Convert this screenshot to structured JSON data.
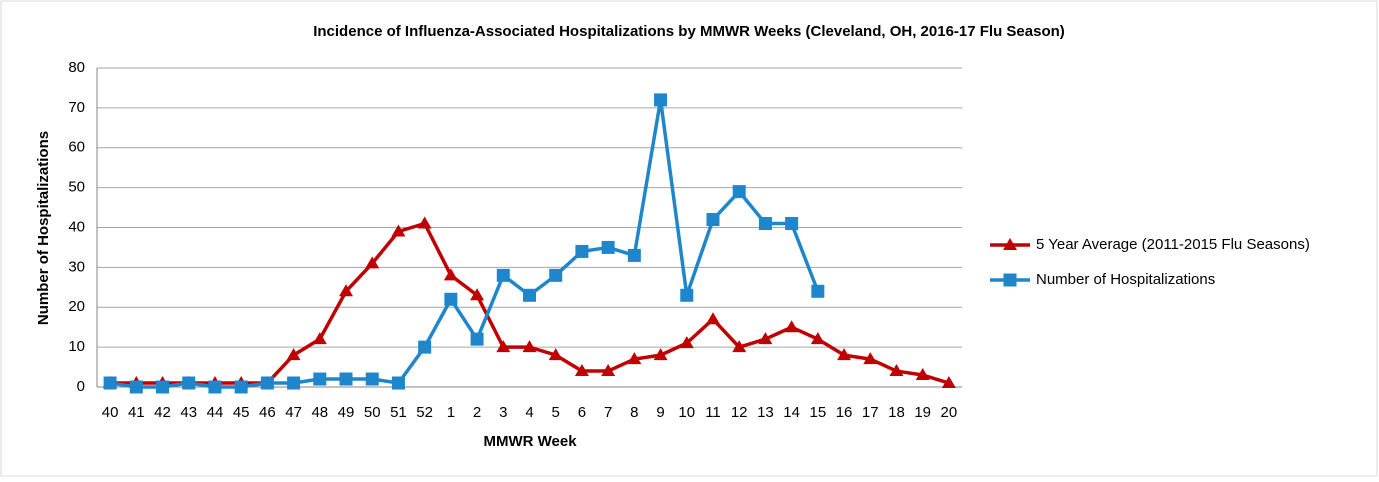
{
  "chart_data": {
    "type": "line",
    "title": "Incidence of Influenza-Associated Hospitalizations by MMWR Weeks (Cleveland, OH, 2016-17 Flu Season)",
    "x_label": "MMWR Week",
    "y_label": "Number of Hospitalizations",
    "categories": [
      "40",
      "41",
      "42",
      "43",
      "44",
      "45",
      "46",
      "47",
      "48",
      "49",
      "50",
      "51",
      "52",
      "1",
      "2",
      "3",
      "4",
      "5",
      "6",
      "7",
      "8",
      "9",
      "10",
      "11",
      "12",
      "13",
      "14",
      "15",
      "16",
      "17",
      "18",
      "19",
      "20"
    ],
    "series": [
      {
        "name": "5 Year Average (2011-2015 Flu Seasons)",
        "color": "#c00000",
        "marker": "triangle",
        "values": [
          1,
          1,
          1,
          1,
          1,
          1,
          1,
          8,
          12,
          24,
          31,
          39,
          41,
          28,
          23,
          10,
          10,
          8,
          4,
          4,
          7,
          8,
          11,
          17,
          10,
          12,
          15,
          12,
          8,
          7,
          4,
          3,
          1
        ]
      },
      {
        "name": "Number of Hospitalizations",
        "color": "#1f86cc",
        "marker": "square",
        "values": [
          1,
          0,
          0,
          1,
          0,
          0,
          1,
          1,
          2,
          2,
          2,
          1,
          10,
          22,
          12,
          28,
          23,
          28,
          34,
          35,
          33,
          72,
          23,
          42,
          49,
          41,
          41,
          24,
          null,
          null,
          null,
          null,
          null
        ]
      }
    ],
    "ylim": [
      0,
      80
    ],
    "yticks": [
      0,
      10,
      20,
      30,
      40,
      50,
      60,
      70,
      80
    ],
    "grid": true,
    "legend": "right"
  }
}
